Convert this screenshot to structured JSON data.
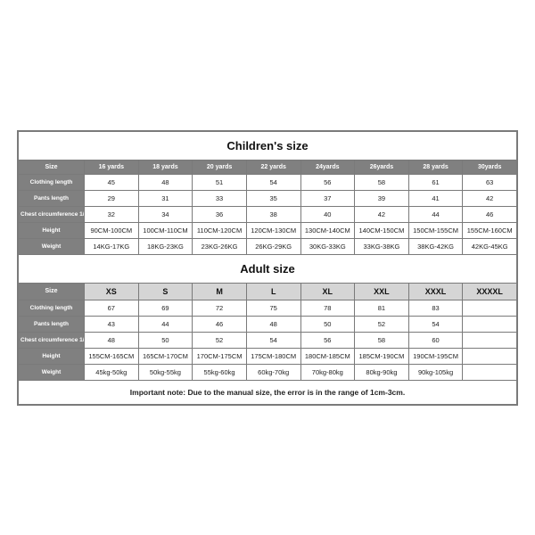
{
  "labels": {
    "size": "Size",
    "clothing_length": "Clothing length",
    "pants_length": "Pants length",
    "chest": "Chest circumference 1/2",
    "height": "Height",
    "weight": "Weight"
  },
  "children": {
    "title": "Children's size",
    "columns": [
      "16 yards",
      "18 yards",
      "20 yards",
      "22 yards",
      "24yards",
      "26yards",
      "28 yards",
      "30yards"
    ],
    "clothing_length": [
      "45",
      "48",
      "51",
      "54",
      "56",
      "58",
      "61",
      "63"
    ],
    "pants_length": [
      "29",
      "31",
      "33",
      "35",
      "37",
      "39",
      "41",
      "42"
    ],
    "chest": [
      "32",
      "34",
      "36",
      "38",
      "40",
      "42",
      "44",
      "46"
    ],
    "height": [
      "90CM-100CM",
      "100CM-110CM",
      "110CM-120CM",
      "120CM-130CM",
      "130CM-140CM",
      "140CM-150CM",
      "150CM-155CM",
      "155CM-160CM"
    ],
    "weight": [
      "14KG-17KG",
      "18KG-23KG",
      "23KG-26KG",
      "26KG-29KG",
      "30KG-33KG",
      "33KG-38KG",
      "38KG-42KG",
      "42KG-45KG"
    ]
  },
  "adult": {
    "title": "Adult size",
    "columns": [
      "XS",
      "S",
      "M",
      "L",
      "XL",
      "XXL",
      "XXXL",
      "XXXXL"
    ],
    "clothing_length": [
      "67",
      "69",
      "72",
      "75",
      "78",
      "81",
      "83",
      ""
    ],
    "pants_length": [
      "43",
      "44",
      "46",
      "48",
      "50",
      "52",
      "54",
      ""
    ],
    "chest": [
      "48",
      "50",
      "52",
      "54",
      "56",
      "58",
      "60",
      ""
    ],
    "height": [
      "155CM-165CM",
      "165CM-170CM",
      "170CM-175CM",
      "175CM-180CM",
      "180CM-185CM",
      "185CM-190CM",
      "190CM-195CM",
      ""
    ],
    "weight": [
      "45kg-50kg",
      "50kg-55kg",
      "55kg-60kg",
      "60kg-70kg",
      "70kg-80kg",
      "80kg-90kg",
      "90kg-105kg",
      ""
    ]
  },
  "note": "Important note: Due to the manual size, the error is in the range of 1cm-3cm.",
  "style": {
    "type": "table",
    "border_color": "#7a7a7a",
    "header_bg": "#808080",
    "header_text_color": "#ffffff",
    "adult_size_cell_bg": "#d5d5d5",
    "body_bg": "#ffffff",
    "text_color": "#222222",
    "section_title_fontsize_pt": 13,
    "cell_fontsize_pt": 7.5,
    "label_fontsize_pt": 6.5,
    "note_fontsize_pt": 8.5,
    "font_family": "Arial"
  }
}
